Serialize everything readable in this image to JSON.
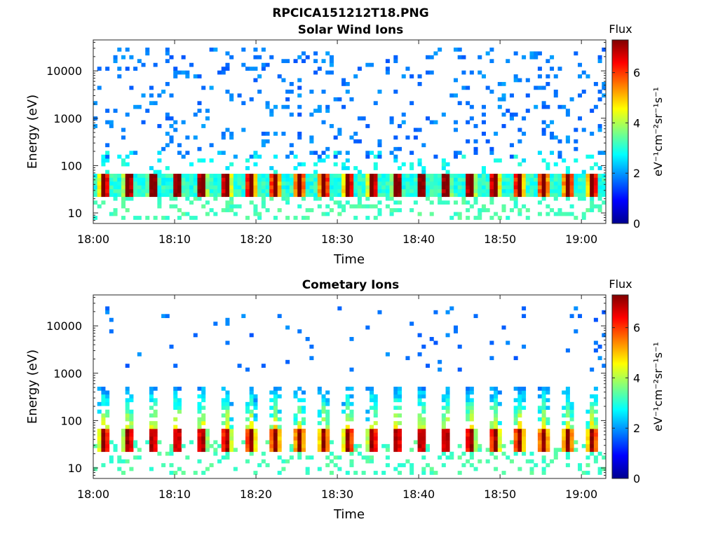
{
  "figure_title": "RPCICA151212T18.PNG",
  "chart_data": [
    {
      "type": "heatmap",
      "title": "Solar Wind Ions",
      "xlabel": "Time",
      "ylabel": "Energy (eV)",
      "y_scale": "log",
      "ylim": [
        6,
        45000
      ],
      "xlim": [
        "18:00",
        "19:03"
      ],
      "x_ticks": [
        "18:00",
        "18:10",
        "18:20",
        "18:30",
        "18:40",
        "18:50",
        "19:00"
      ],
      "y_ticks": [
        "10",
        "100",
        "1000",
        "10000"
      ],
      "y_tick_values": [
        10,
        100,
        1000,
        10000
      ],
      "colorbar": {
        "label": "Flux",
        "unit_label": "eV⁻¹cm⁻²sr⁻¹s⁻¹",
        "range": [
          0,
          7.3
        ],
        "ticks": [
          "0",
          "2",
          "4",
          "6"
        ],
        "colormap": "jet"
      },
      "bursts": {
        "period_minutes": 3,
        "peak_energy_eV": 40,
        "peak_flux": 6.5,
        "low_energy_flux": 3,
        "high_energy_flux": 1.5,
        "high_energy_range_eV": [
          150,
          30000
        ]
      }
    },
    {
      "type": "heatmap",
      "title": "Cometary Ions",
      "xlabel": "Time",
      "ylabel": "Energy (eV)",
      "y_scale": "log",
      "ylim": [
        6,
        45000
      ],
      "xlim": [
        "18:00",
        "19:03"
      ],
      "x_ticks": [
        "18:00",
        "18:10",
        "18:20",
        "18:30",
        "18:40",
        "18:50",
        "19:00"
      ],
      "y_ticks": [
        "10",
        "100",
        "1000",
        "10000"
      ],
      "y_tick_values": [
        10,
        100,
        1000,
        10000
      ],
      "colorbar": {
        "label": "Flux",
        "unit_label": "eV⁻¹cm⁻²sr⁻¹s⁻¹",
        "range": [
          0,
          7.3
        ],
        "ticks": [
          "0",
          "2",
          "4",
          "6"
        ],
        "colormap": "jet"
      },
      "bursts": {
        "period_minutes": 3,
        "peak_energy_eV": 40,
        "peak_flux": 7,
        "plume_top_eV": 500,
        "low_energy_flux": 3,
        "high_energy_flux": 1.5,
        "high_energy_range_eV": [
          1000,
          25000
        ]
      }
    }
  ]
}
